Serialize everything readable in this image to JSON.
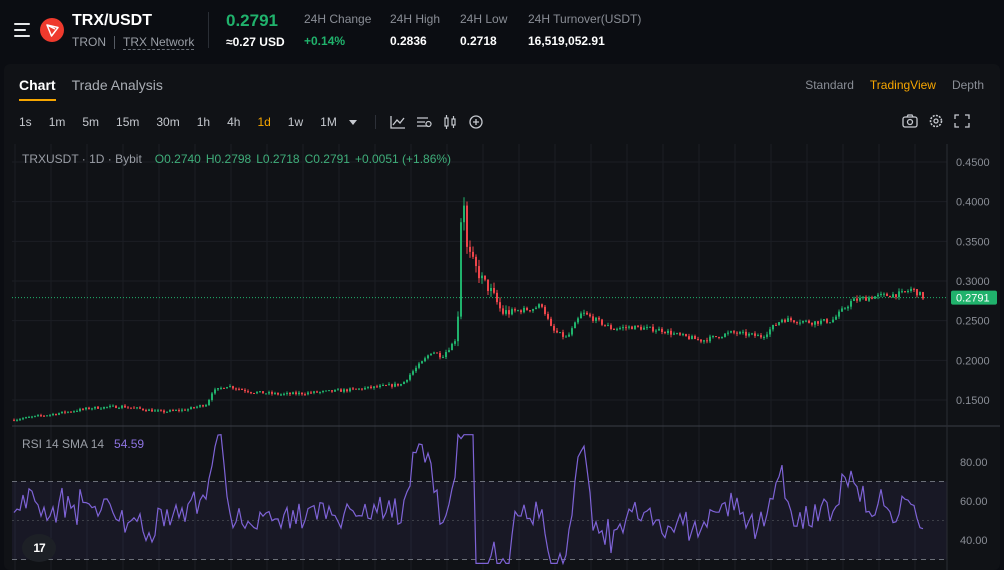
{
  "header": {
    "pair": "TRX/USDT",
    "network_name": "TRON",
    "network_link": "TRX Network",
    "last_price": "0.2791",
    "price_usd": "≈0.27 USD",
    "stats": [
      {
        "label": "24H Change",
        "value": "+0.14%",
        "positive": true
      },
      {
        "label": "24H High",
        "value": "0.2836",
        "positive": false
      },
      {
        "label": "24H Low",
        "value": "0.2718",
        "positive": false
      },
      {
        "label": "24H Turnover(USDT)",
        "value": "16,519,052.91",
        "positive": false
      }
    ]
  },
  "tabs": [
    "Chart",
    "Trade Analysis"
  ],
  "views": [
    "Standard",
    "TradingView",
    "Depth"
  ],
  "timeframes": [
    "1s",
    "1m",
    "5m",
    "15m",
    "30m",
    "1h",
    "4h",
    "1d",
    "1w",
    "1M"
  ],
  "active_timeframe": "1d",
  "legend": {
    "symbol": "TRXUSDT · 1D · Bybit",
    "open": "O0.2740",
    "high": "H0.2798",
    "low": "L0.2718",
    "close": "C0.2791",
    "change": "+0.0051 (+1.86%)"
  },
  "rsi": {
    "label": "RSI 14 SMA 14",
    "value": "54.59"
  },
  "price_axis": [
    "0.4500",
    "0.4000",
    "0.3500",
    "0.3000",
    "0.2500",
    "0.2000",
    "0.1500"
  ],
  "last_price_label": "0.2791",
  "rsi_axis": [
    "80.00",
    "60.00",
    "40.00"
  ],
  "tv_logo": "17",
  "colors": {
    "up": "#20b26c",
    "down": "#ef454a",
    "accent": "#f7a600",
    "rsi": "#7e63d6"
  },
  "icons": [
    "menu-icon",
    "tron-logo-icon",
    "line-chart-icon",
    "indicators-icon",
    "candles-icon",
    "add-icon",
    "camera-icon",
    "settings-icon",
    "fullscreen-icon",
    "chevron-down-icon"
  ]
}
